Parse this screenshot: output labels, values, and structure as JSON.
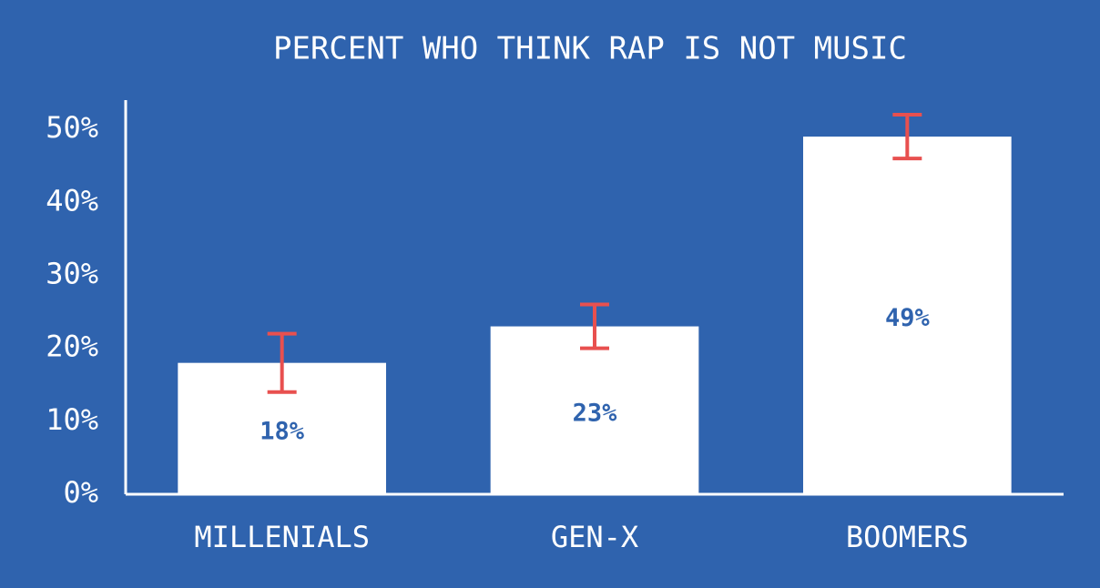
{
  "chart_data": {
    "type": "bar",
    "title": "PERCENT WHO THINK RAP IS NOT MUSIC",
    "categories": [
      "MILLENIALS",
      "GEN-X",
      "BOOMERS"
    ],
    "values": [
      18,
      23,
      49
    ],
    "value_labels": [
      "18%",
      "23%",
      "49%"
    ],
    "errors": [
      4,
      3,
      3
    ],
    "color": "#ffffff",
    "error_color": "#e8504f",
    "background": "#2f63ae",
    "ylim": [
      0,
      54
    ],
    "yticks": [
      {
        "value": 0,
        "label": "0%"
      },
      {
        "value": 10,
        "label": "10%"
      },
      {
        "value": 20,
        "label": "20%"
      },
      {
        "value": 30,
        "label": "30%"
      },
      {
        "value": 40,
        "label": "40%"
      },
      {
        "value": 50,
        "label": "50%"
      }
    ],
    "grid": false
  }
}
